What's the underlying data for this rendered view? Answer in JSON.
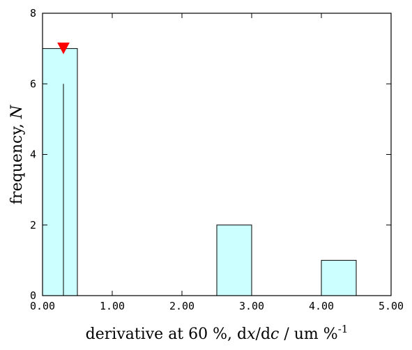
{
  "chart_data": {
    "type": "bar",
    "subtype": "histogram",
    "bins": [
      {
        "start": 0.0,
        "end": 0.5,
        "count": 7
      },
      {
        "start": 0.5,
        "end": 1.0,
        "count": 0
      },
      {
        "start": 1.0,
        "end": 1.5,
        "count": 0
      },
      {
        "start": 1.5,
        "end": 2.0,
        "count": 0
      },
      {
        "start": 2.0,
        "end": 2.5,
        "count": 0
      },
      {
        "start": 2.5,
        "end": 3.0,
        "count": 2
      },
      {
        "start": 3.0,
        "end": 3.5,
        "count": 0
      },
      {
        "start": 3.5,
        "end": 4.0,
        "count": 0
      },
      {
        "start": 4.0,
        "end": 4.5,
        "count": 1
      },
      {
        "start": 4.5,
        "end": 5.0,
        "count": 0
      }
    ],
    "marker": {
      "x": 0.3,
      "y": 7,
      "shape": "triangle-down",
      "color": "#ff0000"
    },
    "reference_line": {
      "x": 0.3,
      "y_from": 0,
      "y_to": 6
    },
    "xlim": [
      0,
      5
    ],
    "ylim": [
      0,
      8
    ],
    "xticks": [
      0,
      1,
      2,
      3,
      4,
      5
    ],
    "xtick_labels": [
      "0.00",
      "1.00",
      "2.00",
      "3.00",
      "4.00",
      "5.00"
    ],
    "yticks": [
      0,
      2,
      4,
      6,
      8
    ],
    "ytick_labels": [
      "0",
      "2",
      "4",
      "6",
      "8"
    ],
    "xlabel": {
      "prefix": "derivative at 60 %, d",
      "var1": "x",
      "mid": "/d",
      "var2": "c",
      "suffix": " / um %",
      "exponent": "-1"
    },
    "ylabel": {
      "prefix": "frequency, ",
      "var": "N"
    },
    "bar_color": "#ccffff",
    "bar_edge_color": "#000000",
    "grid": false,
    "legend": "none"
  }
}
